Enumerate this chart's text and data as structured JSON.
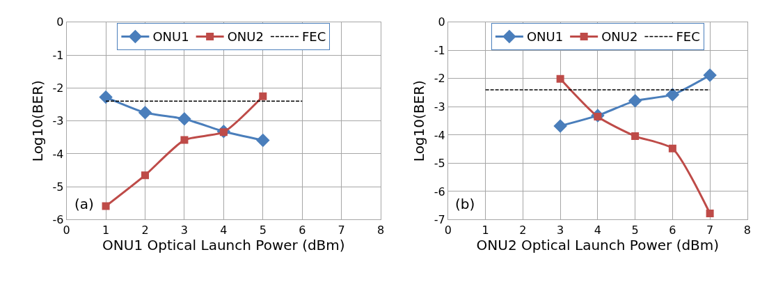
{
  "chart_data": [
    {
      "type": "line",
      "xlabel": "ONU1 Optical Launch Power (dBm)",
      "ylabel": "Log10(BER)",
      "annotations": [
        "(a)"
      ],
      "xlim": [
        0,
        8
      ],
      "xticks": [
        0,
        1,
        2,
        3,
        4,
        5,
        6,
        7,
        8
      ],
      "ylim": [
        -6,
        0
      ],
      "yticks": [
        -6,
        -5,
        -4,
        -3,
        -2,
        -1,
        0
      ],
      "grid": true,
      "legend": "top",
      "series": [
        {
          "name": "ONU1",
          "color": "#4a7ebb",
          "marker": "diamond",
          "line_style": "solid",
          "x": [
            1,
            2,
            3,
            4,
            5
          ],
          "values": [
            -2.28,
            -2.75,
            -2.94,
            -3.32,
            -3.59
          ]
        },
        {
          "name": "ONU2",
          "color": "#be4b48",
          "marker": "square",
          "line_style": "solid",
          "x": [
            1,
            2,
            3,
            4,
            5
          ],
          "values": [
            -5.59,
            -4.65,
            -3.58,
            -3.34,
            -2.25
          ]
        },
        {
          "name": "FEC",
          "color": "#000000",
          "marker": "none",
          "line_style": "dashed",
          "x": [
            1,
            6
          ],
          "values": [
            -2.4,
            -2.4
          ]
        }
      ]
    },
    {
      "type": "line",
      "xlabel": "ONU2 Optical Launch Power (dBm)",
      "ylabel": "Log10(BER)",
      "annotations": [
        "(b)"
      ],
      "xlim": [
        0,
        8
      ],
      "xticks": [
        0,
        1,
        2,
        3,
        4,
        5,
        6,
        7,
        8
      ],
      "ylim": [
        -7,
        0
      ],
      "yticks": [
        -7,
        -6,
        -5,
        -4,
        -3,
        -2,
        -1,
        0
      ],
      "grid": true,
      "legend": "top",
      "series": [
        {
          "name": "ONU1",
          "color": "#4a7ebb",
          "marker": "diamond",
          "line_style": "solid",
          "x": [
            3,
            4,
            5,
            6,
            7
          ],
          "values": [
            -3.68,
            -3.31,
            -2.79,
            -2.57,
            -1.88
          ]
        },
        {
          "name": "ONU2",
          "color": "#be4b48",
          "marker": "square",
          "line_style": "solid",
          "x": [
            3,
            4,
            5,
            6,
            7
          ],
          "values": [
            -2.01,
            -3.35,
            -4.04,
            -4.48,
            -6.78
          ]
        },
        {
          "name": "FEC",
          "color": "#000000",
          "marker": "none",
          "line_style": "dashed",
          "x": [
            1,
            7
          ],
          "values": [
            -2.4,
            -2.4
          ]
        }
      ]
    }
  ]
}
